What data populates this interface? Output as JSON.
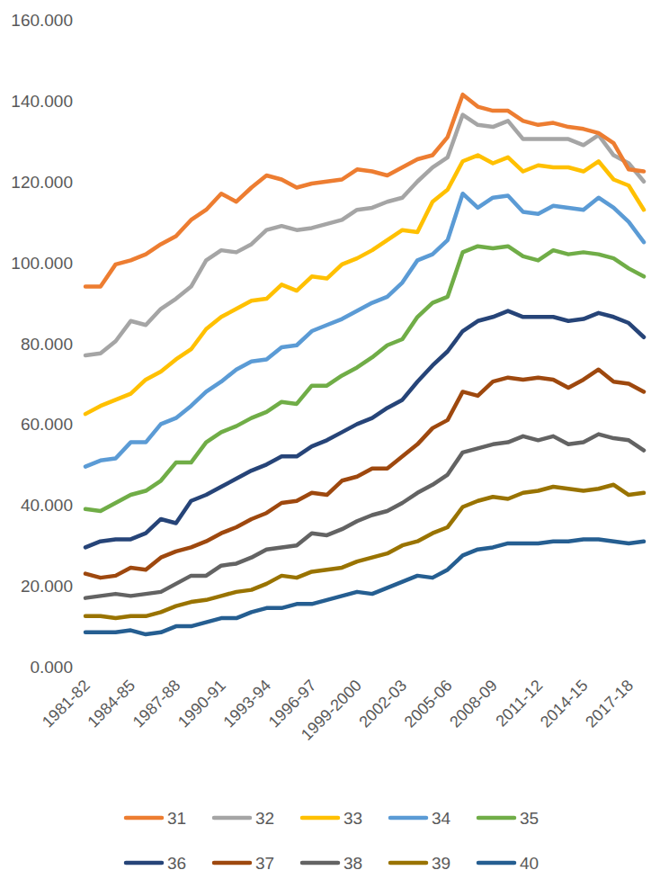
{
  "chart_data": {
    "type": "line",
    "categories": [
      "1981-82",
      null,
      null,
      "1984-85",
      null,
      null,
      "1987-88",
      null,
      null,
      "1990-91",
      null,
      null,
      "1993-94",
      null,
      null,
      "1996-97",
      null,
      null,
      "1999-2000",
      null,
      null,
      "2002-03",
      null,
      null,
      "2005-06",
      null,
      null,
      "2008-09",
      null,
      null,
      "2011-12",
      null,
      null,
      "2014-15",
      null,
      null,
      "2017-18",
      null
    ],
    "series": [
      {
        "name": "31",
        "color": "#ed7d31",
        "values": [
          94,
          94,
          99.5,
          100.5,
          102,
          104.5,
          106.5,
          110.5,
          113,
          117,
          115,
          118.5,
          121.5,
          120.5,
          118.5,
          119.5,
          120,
          120.5,
          123,
          122.5,
          121.5,
          123.5,
          125.5,
          126.5,
          131,
          141.5,
          138.5,
          137.5,
          137.5,
          135,
          134,
          134.5,
          133.5,
          133,
          132,
          129.5,
          123,
          122.5
        ]
      },
      {
        "name": "32",
        "color": "#a5a5a5",
        "values": [
          77,
          77.5,
          80.5,
          85.5,
          84.5,
          88.5,
          91,
          94,
          100.5,
          103,
          102.5,
          104.5,
          108,
          109,
          108,
          108.5,
          109.5,
          110.5,
          113,
          113.5,
          115,
          116,
          120,
          123.5,
          126,
          136.5,
          134,
          133.5,
          135,
          130.5,
          130.5,
          130.5,
          130.5,
          129,
          131.5,
          126.5,
          124.5,
          120
        ]
      },
      {
        "name": "33",
        "color": "#ffc000",
        "values": [
          62.5,
          64.5,
          66,
          67.5,
          71,
          73,
          76,
          78.5,
          83.5,
          86.5,
          88.5,
          90.5,
          91,
          94.5,
          93,
          96.5,
          96,
          99.5,
          101,
          103,
          105.5,
          108,
          107.5,
          115,
          118,
          125,
          126.5,
          124.5,
          126,
          122.5,
          124,
          123.5,
          123.5,
          122.5,
          125,
          120.5,
          119,
          113
        ]
      },
      {
        "name": "34",
        "color": "#5b9bd5",
        "values": [
          49.5,
          51,
          51.5,
          55.5,
          55.5,
          60,
          61.5,
          64.5,
          68,
          70.5,
          73.5,
          75.5,
          76,
          79,
          79.5,
          83,
          84.5,
          86,
          88,
          90,
          91.5,
          95,
          100.5,
          102,
          105.5,
          117,
          113.5,
          116,
          116.5,
          112.5,
          112,
          114,
          113.5,
          113,
          116,
          113.5,
          110,
          105
        ]
      },
      {
        "name": "35",
        "color": "#70ad47",
        "values": [
          39,
          38.5,
          40.5,
          42.5,
          43.5,
          46,
          50.5,
          50.5,
          55.5,
          58,
          59.5,
          61.5,
          63,
          65.5,
          65,
          69.5,
          69.5,
          72,
          74,
          76.5,
          79.5,
          81,
          86.5,
          90,
          91.5,
          102.5,
          104,
          103.5,
          104,
          101.5,
          100.5,
          103,
          102,
          102.5,
          102,
          101,
          98.5,
          96.5
        ]
      },
      {
        "name": "36",
        "color": "#264478",
        "values": [
          29.5,
          31,
          31.5,
          31.5,
          33,
          36.5,
          35.5,
          41,
          42.5,
          44.5,
          46.5,
          48.5,
          50,
          52,
          52,
          54.5,
          56,
          58,
          60,
          61.5,
          64,
          66,
          70.5,
          74.5,
          78,
          83,
          85.5,
          86.5,
          88,
          86.5,
          86.5,
          86.5,
          85.5,
          86,
          87.5,
          86.5,
          85,
          81.5
        ]
      },
      {
        "name": "37",
        "color": "#9e480e",
        "values": [
          23,
          22,
          22.5,
          24.5,
          24,
          27,
          28.5,
          29.5,
          31,
          33,
          34.5,
          36.5,
          38,
          40.5,
          41,
          43,
          42.5,
          46,
          47,
          49,
          49,
          52,
          55,
          59,
          61,
          68,
          67,
          70.5,
          71.5,
          71,
          71.5,
          71,
          69,
          71,
          73.5,
          70.5,
          70,
          68
        ]
      },
      {
        "name": "38",
        "color": "#636363",
        "values": [
          17,
          17.5,
          18,
          17.5,
          18,
          18.5,
          20.5,
          22.5,
          22.5,
          25,
          25.5,
          27,
          29,
          29.5,
          30,
          33,
          32.5,
          34,
          36,
          37.5,
          38.5,
          40.5,
          43,
          45,
          47.5,
          53,
          54,
          55,
          55.5,
          57,
          56,
          57,
          55,
          55.5,
          57.5,
          56.5,
          56,
          53.5
        ]
      },
      {
        "name": "39",
        "color": "#997300",
        "values": [
          12.5,
          12.5,
          12,
          12.5,
          12.5,
          13.5,
          15,
          16,
          16.5,
          17.5,
          18.5,
          19,
          20.5,
          22.5,
          22,
          23.5,
          24,
          24.5,
          26,
          27,
          28,
          30,
          31,
          33,
          34.5,
          39.5,
          41,
          42,
          41.5,
          43,
          43.5,
          44.5,
          44,
          43.5,
          44,
          45,
          42.5,
          43
        ]
      },
      {
        "name": "40",
        "color": "#255e91",
        "values": [
          8.5,
          8.5,
          8.5,
          9,
          8,
          8.5,
          10,
          10,
          11,
          12,
          12,
          13.5,
          14.5,
          14.5,
          15.5,
          15.5,
          16.5,
          17.5,
          18.5,
          18,
          19.5,
          21,
          22.5,
          22,
          24,
          27.5,
          29,
          29.5,
          30.5,
          30.5,
          30.5,
          31,
          31,
          31.5,
          31.5,
          31,
          30.5,
          31
        ]
      }
    ],
    "ylim": [
      0,
      160
    ],
    "yticks": [
      {
        "value": 0,
        "label": "0.000"
      },
      {
        "value": 20,
        "label": "20.000"
      },
      {
        "value": 40,
        "label": "40.000"
      },
      {
        "value": 60,
        "label": "60.000"
      },
      {
        "value": 80,
        "label": "80.000"
      },
      {
        "value": 100,
        "label": "100.000"
      },
      {
        "value": 120,
        "label": "120.000"
      },
      {
        "value": 140,
        "label": "140.000"
      },
      {
        "value": 160,
        "label": "160.000"
      }
    ],
    "grid": false,
    "legend": "bottom",
    "line_style": "solid"
  }
}
